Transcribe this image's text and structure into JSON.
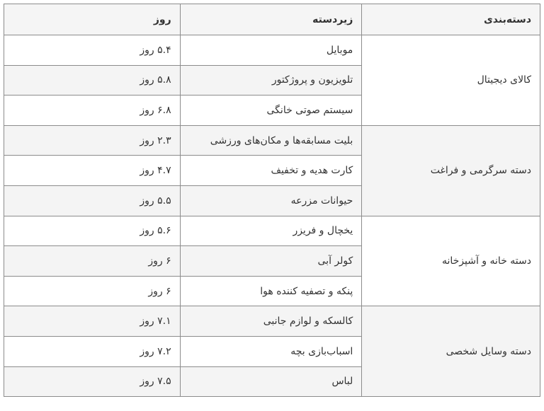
{
  "header": {
    "category": "دسته‌بندی",
    "subcategory": "زیردسته",
    "days": "روز"
  },
  "groups": [
    {
      "category": "کالای دیجیتال",
      "items": [
        {
          "subcategory": "موبایل",
          "days": "۵.۴ روز"
        },
        {
          "subcategory": "تلویزیون و پروژکتور",
          "days": "۵.۸ روز"
        },
        {
          "subcategory": "سیستم صوتی خانگی",
          "days": "۶.۸ روز"
        }
      ]
    },
    {
      "category": "دسته سرگرمی و فراغت",
      "items": [
        {
          "subcategory": "بلیت مسابقه‌ها و مکان‌های ورزشی",
          "days": "۲.۳ روز"
        },
        {
          "subcategory": "کارت هدیه و تخفیف",
          "days": "۴.۷ روز"
        },
        {
          "subcategory": "حیوانات مزرعه",
          "days": "۵.۵ روز"
        }
      ]
    },
    {
      "category": "دسته خانه و آشپزخانه",
      "items": [
        {
          "subcategory": "یخچال و فریزر",
          "days": "۵.۶ روز"
        },
        {
          "subcategory": "کولر آبی",
          "days": "۶ روز"
        },
        {
          "subcategory": "پنکه و تصفیه کننده هوا",
          "days": "۶ روز"
        }
      ]
    },
    {
      "category": "دسته وسایل شخصی",
      "items": [
        {
          "subcategory": "کالسکه و لوازم جانبی",
          "days": "۷.۱ روز"
        },
        {
          "subcategory": "اسباب‌بازی بچه",
          "days": "۷.۲ روز"
        },
        {
          "subcategory": "لباس",
          "days": "۷.۵ روز"
        }
      ]
    }
  ]
}
